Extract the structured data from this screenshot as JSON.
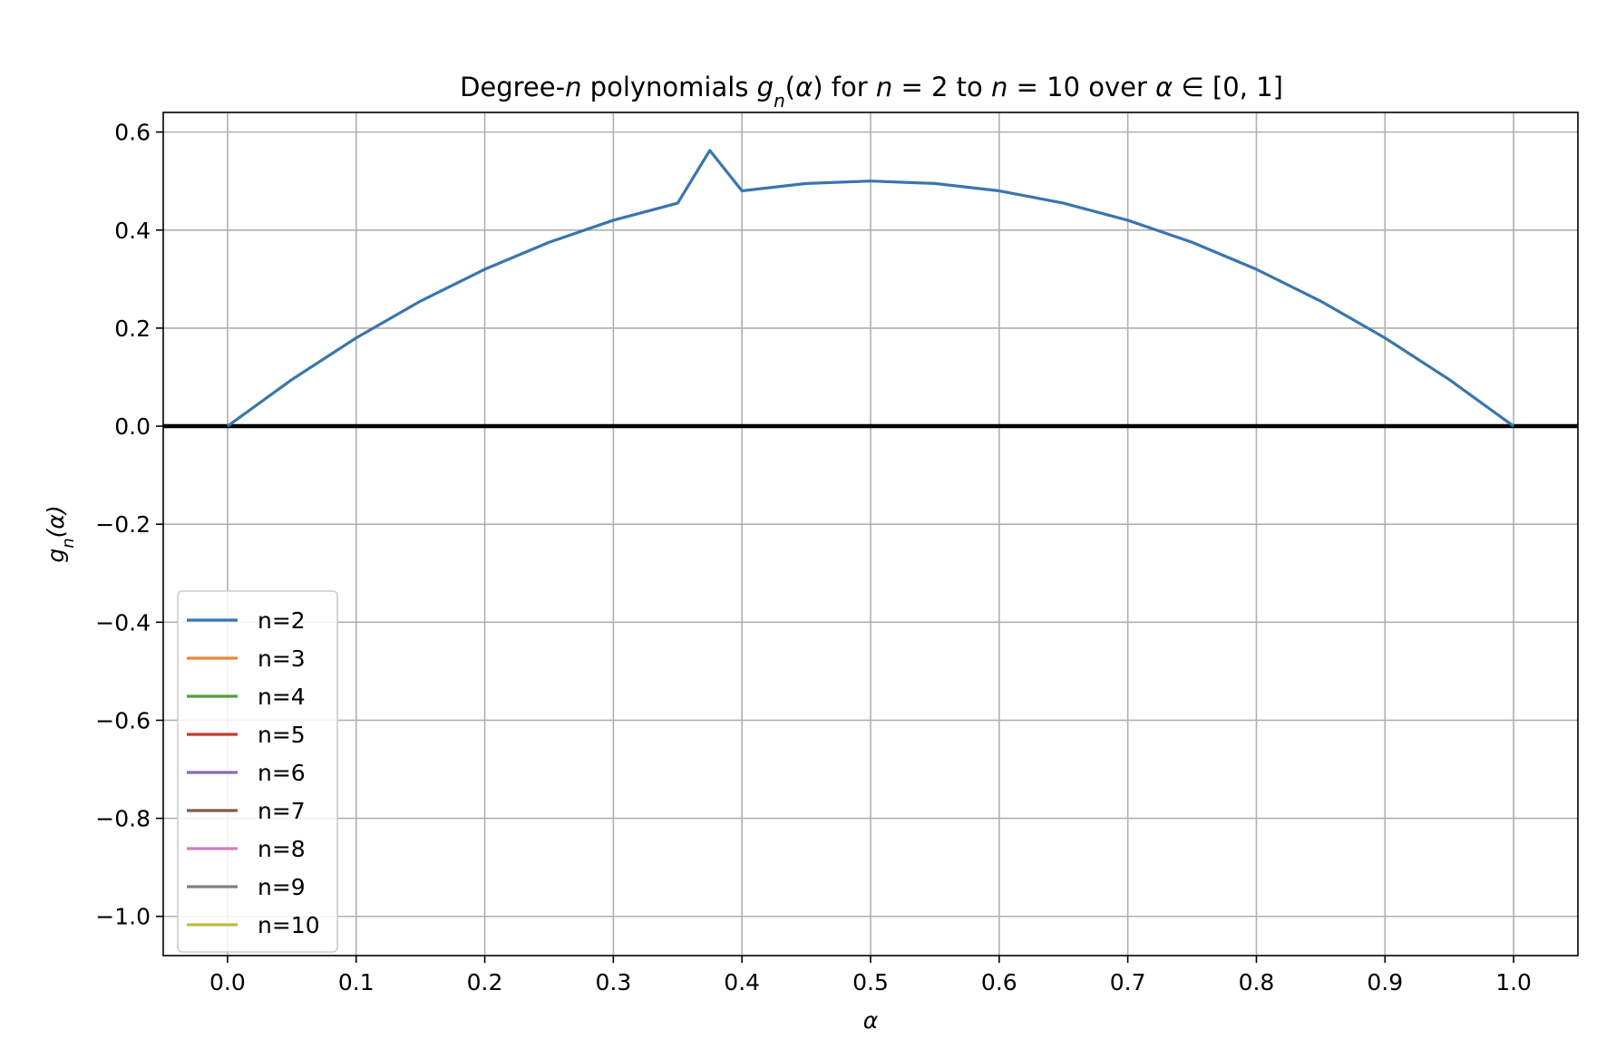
{
  "chart_data": {
    "type": "line",
    "title": {
      "parts": [
        {
          "text": "Degree-",
          "italic": false
        },
        {
          "text": "n",
          "italic": true
        },
        {
          "text": " polynomials ",
          "italic": false
        },
        {
          "text": "g",
          "italic": true
        },
        {
          "text": "n",
          "italic": true,
          "sub": true
        },
        {
          "text": "(",
          "italic": false
        },
        {
          "text": "α",
          "italic": true
        },
        {
          "text": ") for ",
          "italic": false
        },
        {
          "text": "n",
          "italic": true
        },
        {
          "text": " = 2 to ",
          "italic": false
        },
        {
          "text": "n",
          "italic": true
        },
        {
          "text": " = 10 over ",
          "italic": false
        },
        {
          "text": "α",
          "italic": true
        },
        {
          "text": " ∈ [0, 1]",
          "italic": false
        }
      ]
    },
    "xlabel": "α",
    "ylabel": "gn(α)",
    "xlim": [
      -0.05,
      1.05
    ],
    "ylim": [
      -1.08,
      0.64
    ],
    "xticks": [
      0.0,
      0.1,
      0.2,
      0.3,
      0.4,
      0.5,
      0.6,
      0.7,
      0.8,
      0.9,
      1.0
    ],
    "xtick_labels": [
      "0.0",
      "0.1",
      "0.2",
      "0.3",
      "0.4",
      "0.5",
      "0.6",
      "0.7",
      "0.8",
      "0.9",
      "1.0"
    ],
    "yticks": [
      0.6,
      0.4,
      0.2,
      0.0,
      -0.2,
      -0.4,
      -0.6,
      -0.8,
      -1.0
    ],
    "ytick_labels": [
      "0.6",
      "0.4",
      "0.2",
      "0.0",
      "−0.2",
      "−0.4",
      "−0.6",
      "−0.8",
      "−1.0"
    ],
    "grid": true,
    "legend_position": "lower-left",
    "reference_line": {
      "y": 0.0,
      "color": "#000000"
    },
    "series": [
      {
        "name": "n=2",
        "color": "#3a75ae",
        "x": [
          0.0,
          0.05,
          0.1,
          0.15,
          0.2,
          0.25,
          0.3,
          0.35,
          0.375,
          0.4,
          0.45,
          0.5,
          0.55,
          0.6,
          0.65,
          0.7,
          0.75,
          0.8,
          0.85,
          0.9,
          0.95,
          1.0
        ],
        "y": [
          0.0,
          0.095,
          0.18,
          0.255,
          0.32,
          0.375,
          0.42,
          0.455,
          0.5625,
          0.48,
          0.495,
          0.5,
          0.495,
          0.48,
          0.455,
          0.42,
          0.375,
          0.32,
          0.255,
          0.18,
          0.095,
          0.0
        ]
      },
      {
        "name": "n=3",
        "color": "#ef8636",
        "x": [],
        "y": []
      },
      {
        "name": "n=4",
        "color": "#519e3e",
        "x": [],
        "y": []
      },
      {
        "name": "n=5",
        "color": "#c53932",
        "x": [],
        "y": []
      },
      {
        "name": "n=6",
        "color": "#8d69b8",
        "x": [],
        "y": []
      },
      {
        "name": "n=7",
        "color": "#84584e",
        "x": [],
        "y": []
      },
      {
        "name": "n=8",
        "color": "#d57dbf",
        "x": [],
        "y": []
      },
      {
        "name": "n=9",
        "color": "#7f7f7f",
        "x": [],
        "y": []
      },
      {
        "name": "n=10",
        "color": "#bcbc45",
        "x": [],
        "y": []
      }
    ]
  }
}
